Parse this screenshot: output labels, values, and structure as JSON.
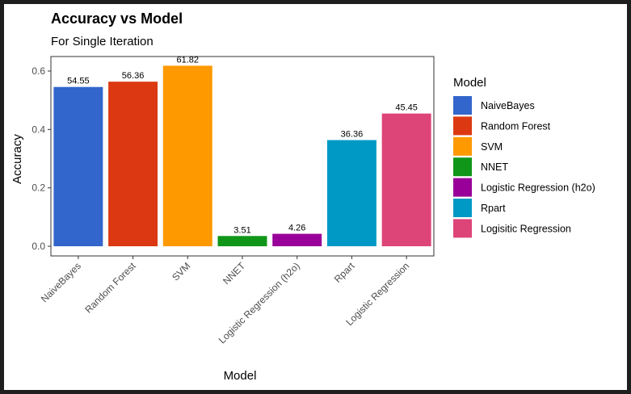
{
  "chart_data": {
    "type": "bar",
    "title": "Accuracy vs Model",
    "subtitle": "For Single Iteration",
    "xlabel": "Model",
    "ylabel": "Accuracy",
    "ylim": [
      0,
      0.65
    ],
    "yticks": [
      "0.0",
      "0.2",
      "0.4",
      "0.6"
    ],
    "ytick_values": [
      0,
      0.2,
      0.4,
      0.6
    ],
    "grid": false,
    "legend_title": "Model",
    "legend_position": "right",
    "categories": [
      "NaiveBayes",
      "Random Forest",
      "SVM",
      "NNET",
      "Logistic Regression (h2o)",
      "Rpart",
      "Logistic Regression"
    ],
    "legend_labels": [
      "NaiveBayes",
      "Random Forest",
      "SVM",
      "NNET",
      "Logistic Regression (h2o)",
      "Rpart",
      "Logisitic Regression"
    ],
    "values": [
      0.5455,
      0.5636,
      0.6182,
      0.0351,
      0.0426,
      0.3636,
      0.4545
    ],
    "data_labels": [
      "54.55",
      "56.36",
      "61.82",
      "3.51",
      "4.26",
      "36.36",
      "45.45"
    ],
    "colors": [
      "#3366cc",
      "#dc3912",
      "#ff9900",
      "#109618",
      "#990099",
      "#0099c6",
      "#dd4477"
    ]
  }
}
